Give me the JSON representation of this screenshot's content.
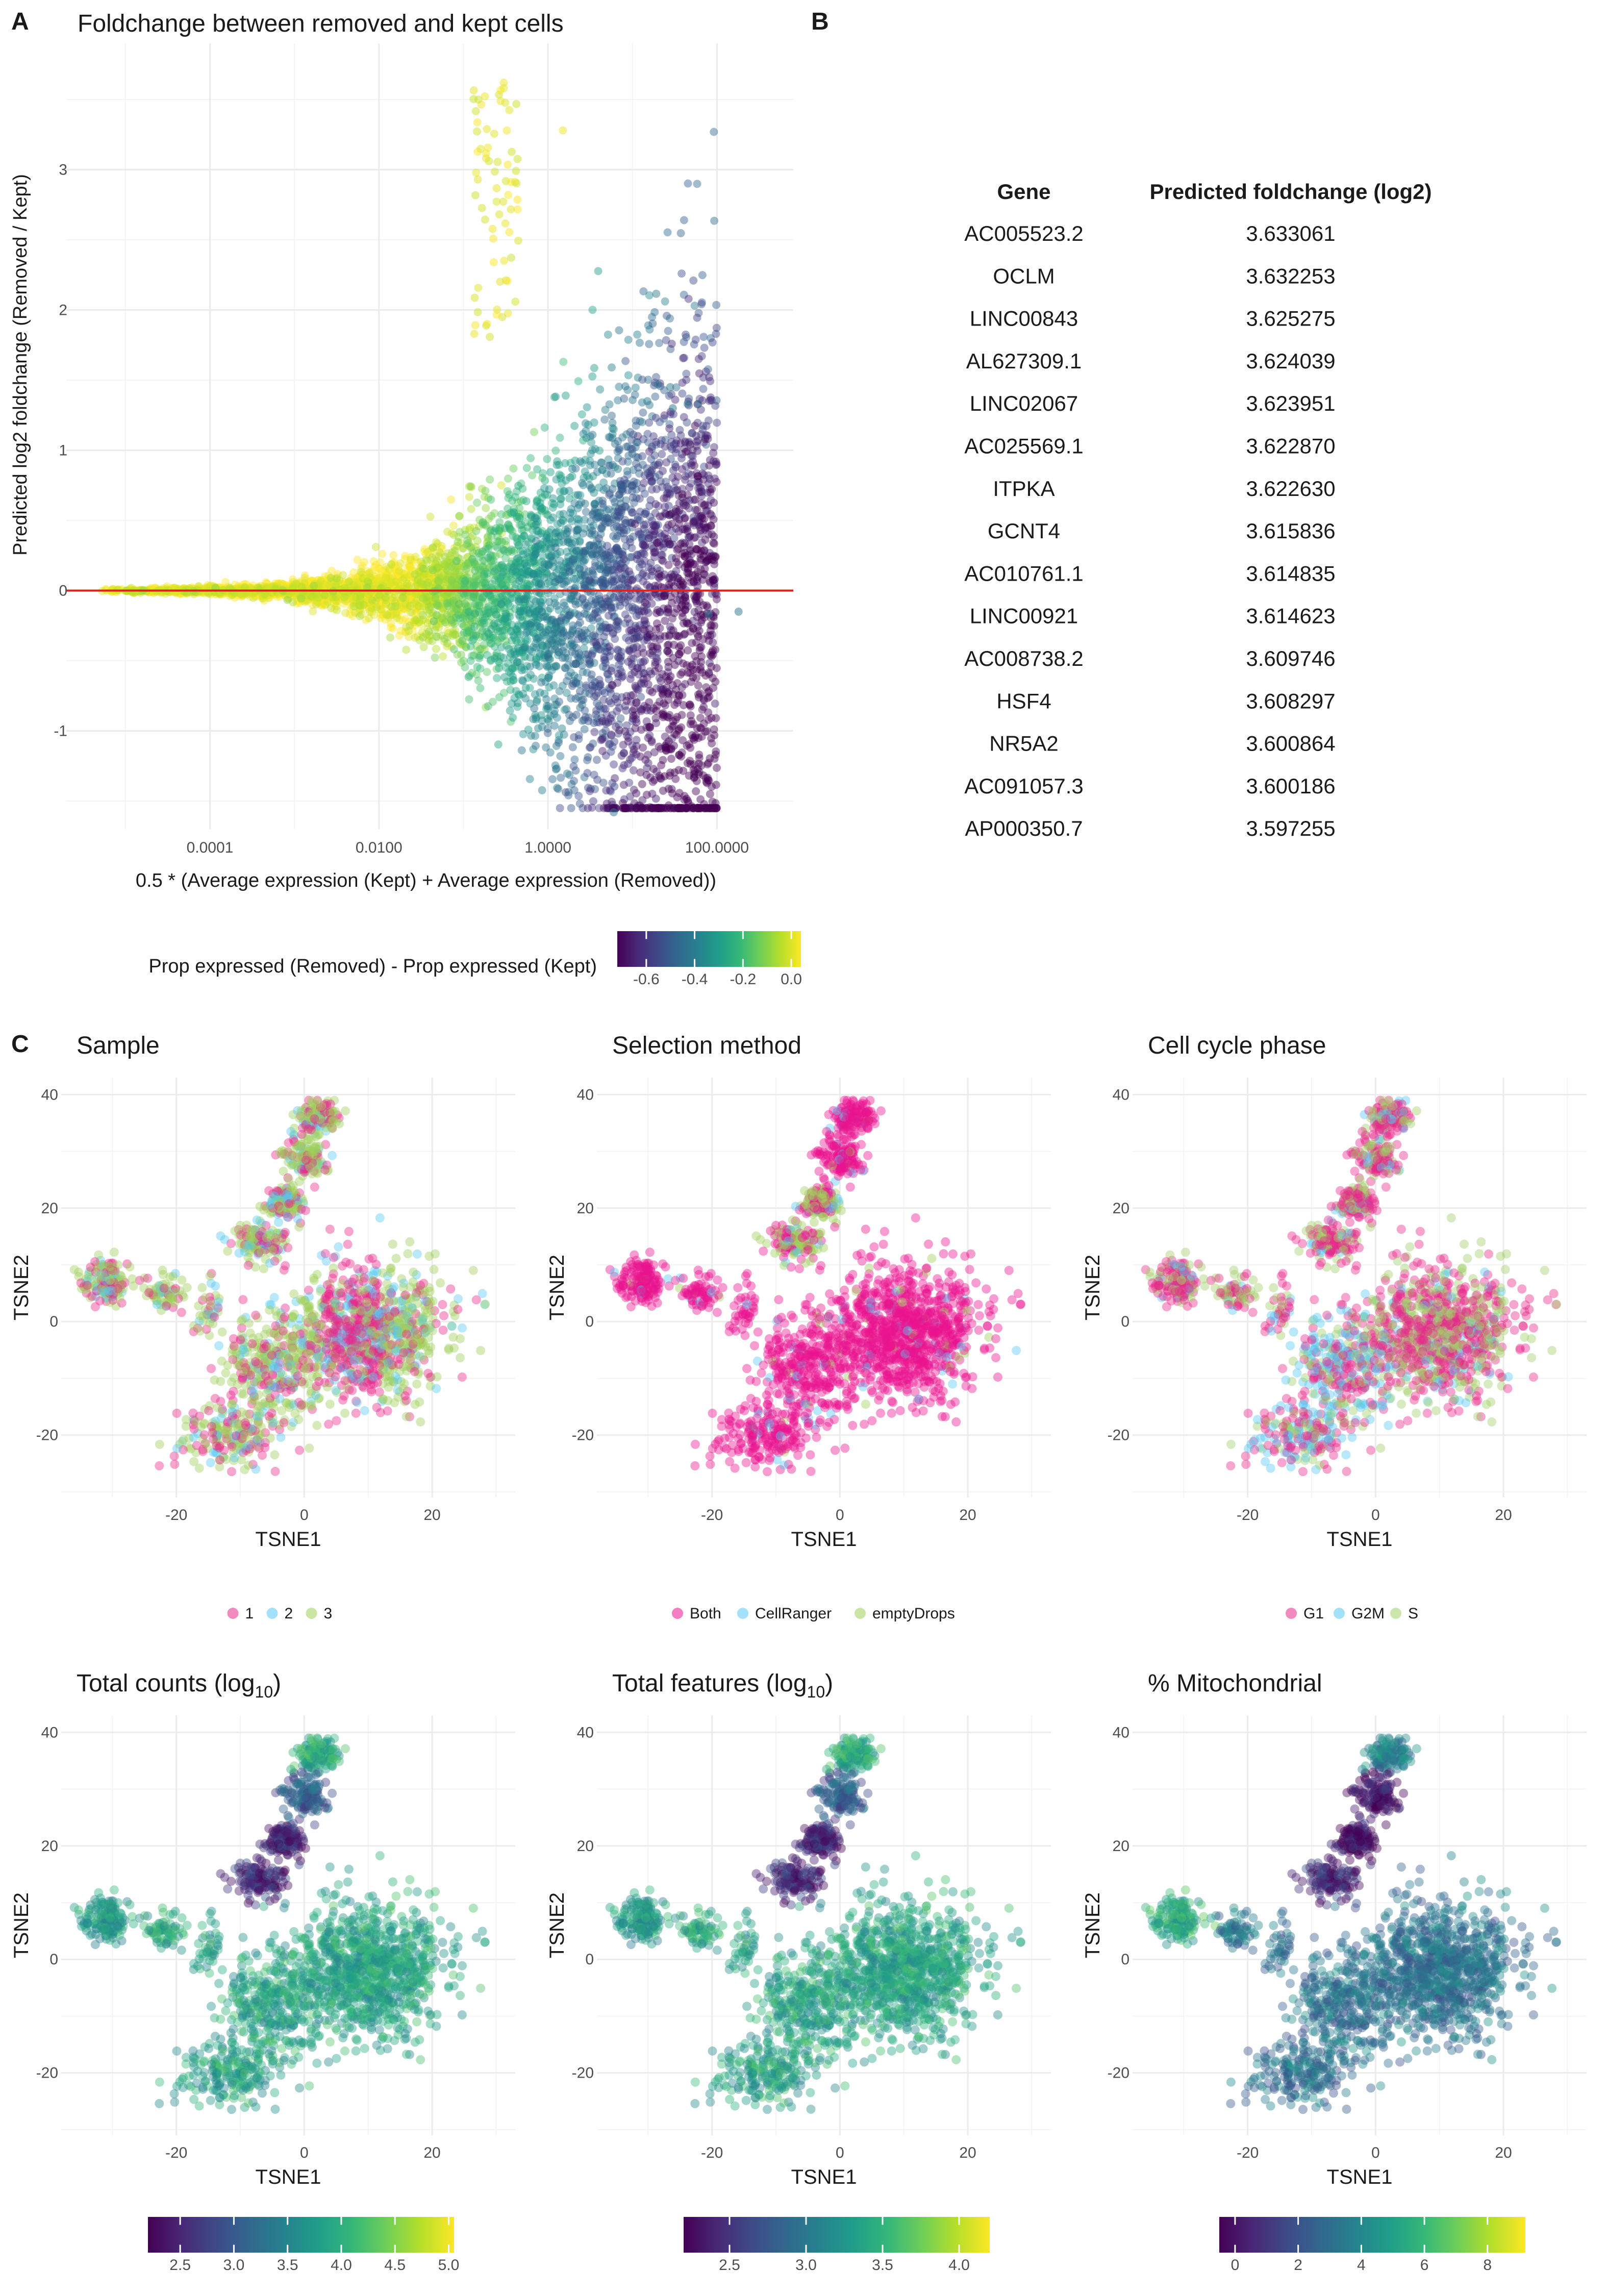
{
  "panels": {
    "A": "A",
    "B": "B",
    "C": "C"
  },
  "colors": {
    "viridis": [
      "#440154",
      "#482878",
      "#3e4a89",
      "#31688e",
      "#26828e",
      "#1f9e89",
      "#35b779",
      "#6ece58",
      "#b5de2b",
      "#fde725"
    ],
    "sample": {
      "1": "#e7298a",
      "2": "#56c8f0",
      "3": "#9fd05a"
    },
    "selection": {
      "Both": "#ea148e",
      "CellRanger": "#56c8f0",
      "emptyDrops": "#9fd05a"
    },
    "phase": {
      "G1": "#e7298a",
      "G2M": "#56c8f0",
      "S": "#a3cf6a"
    },
    "refline": "#e0201b"
  },
  "chart_data": [
    {
      "id": "A",
      "type": "scatter",
      "title": "Foldchange between removed and kept cells",
      "xlabel": "0.5 * (Average expression (Kept) + Average expression (Removed))",
      "ylabel": "Predicted log2 foldchange (Removed / Kept)",
      "x_scale": "log10",
      "xlim": [
        2e-06,
        800
      ],
      "ylim": [
        -1.7,
        3.9
      ],
      "xticks": [
        0.0001,
        0.01,
        1,
        100
      ],
      "xtick_labels": [
        "0.0001",
        "0.0100",
        "1.0000",
        "100.0000"
      ],
      "yticks": [
        -1,
        0,
        1,
        2,
        3
      ],
      "ytick_labels": [
        "-1",
        "0",
        "1",
        "2",
        "3"
      ],
      "hline": 0,
      "colorbar": {
        "label": "Prop expressed (Removed) - Prop expressed (Kept)",
        "range": [
          -0.72,
          0.04
        ],
        "ticks": [
          -0.6,
          -0.4,
          -0.2,
          0.0
        ],
        "tick_labels": [
          "-0.6",
          "-0.4",
          "-0.2",
          "0.0"
        ]
      },
      "outliers": [
        {
          "x": 20,
          "y": 1.47
        },
        {
          "x": 28,
          "y": 1.45
        },
        {
          "x": 15,
          "y": 1.35
        },
        {
          "x": 45,
          "y": 1.33
        },
        {
          "x": 30,
          "y": 1.3
        },
        {
          "x": 60,
          "y": 1.33
        },
        {
          "x": 80,
          "y": -0.17
        },
        {
          "x": 180,
          "y": -0.15
        },
        {
          "x": 1.5,
          "y": 3.28
        },
        {
          "x": 0.3,
          "y": 3.62
        },
        {
          "x": 0.3,
          "y": 3.58
        },
        {
          "x": 6,
          "y": -1.58
        }
      ]
    },
    {
      "id": "C1",
      "type": "scatter",
      "title": "Sample",
      "xlabel": "TSNE1",
      "ylabel": "TSNE2",
      "xlim": [
        -38,
        33
      ],
      "ylim": [
        -31,
        43
      ],
      "xticks": [
        -20,
        0,
        20
      ],
      "yticks": [
        -20,
        0,
        20,
        40
      ],
      "legend": [
        "1",
        "2",
        "3"
      ]
    },
    {
      "id": "C2",
      "type": "scatter",
      "title": "Selection method",
      "xlabel": "TSNE1",
      "ylabel": "TSNE2",
      "xlim": [
        -38,
        33
      ],
      "ylim": [
        -31,
        43
      ],
      "xticks": [
        -20,
        0,
        20
      ],
      "yticks": [
        -20,
        0,
        20,
        40
      ],
      "legend": [
        "Both",
        "CellRanger",
        "emptyDrops"
      ]
    },
    {
      "id": "C3",
      "type": "scatter",
      "title": "Cell cycle phase",
      "xlabel": "TSNE1",
      "ylabel": "TSNE2",
      "xlim": [
        -38,
        33
      ],
      "ylim": [
        -31,
        43
      ],
      "xticks": [
        -20,
        0,
        20
      ],
      "yticks": [
        -20,
        0,
        20,
        40
      ],
      "legend": [
        "G1",
        "G2M",
        "S"
      ]
    },
    {
      "id": "C4",
      "type": "scatter",
      "title": "Total counts (log",
      "title_sub": "10",
      "title_end": ")",
      "xlabel": "TSNE1",
      "ylabel": "TSNE2",
      "xlim": [
        -38,
        33
      ],
      "ylim": [
        -31,
        43
      ],
      "xticks": [
        -20,
        0,
        20
      ],
      "yticks": [
        -20,
        0,
        20,
        40
      ],
      "colorbar": {
        "range": [
          2.2,
          5.05
        ],
        "ticks": [
          2.5,
          3.0,
          3.5,
          4.0,
          4.5,
          5.0
        ],
        "tick_labels": [
          "2.5",
          "3.0",
          "3.5",
          "4.0",
          "4.5",
          "5.0"
        ]
      }
    },
    {
      "id": "C5",
      "type": "scatter",
      "title": "Total features (log",
      "title_sub": "10",
      "title_end": ")",
      "xlabel": "TSNE1",
      "ylabel": "TSNE2",
      "xlim": [
        -38,
        33
      ],
      "ylim": [
        -31,
        43
      ],
      "xticks": [
        -20,
        0,
        20
      ],
      "yticks": [
        -20,
        0,
        20,
        40
      ],
      "colorbar": {
        "range": [
          2.2,
          4.2
        ],
        "ticks": [
          2.5,
          3.0,
          3.5,
          4.0
        ],
        "tick_labels": [
          "2.5",
          "3.0",
          "3.5",
          "4.0"
        ]
      }
    },
    {
      "id": "C6",
      "type": "scatter",
      "title": "% Mitochondrial",
      "xlabel": "TSNE1",
      "ylabel": "TSNE2",
      "xlim": [
        -38,
        33
      ],
      "ylim": [
        -31,
        43
      ],
      "xticks": [
        -20,
        0,
        20
      ],
      "yticks": [
        -20,
        0,
        20,
        40
      ],
      "colorbar": {
        "range": [
          -0.5,
          9.2
        ],
        "ticks": [
          0,
          2,
          4,
          6,
          8
        ],
        "tick_labels": [
          "0",
          "2",
          "4",
          "6",
          "8"
        ]
      }
    }
  ],
  "table": {
    "columns": [
      "Gene",
      "Predicted foldchange (log2)"
    ],
    "rows": [
      [
        "AC005523.2",
        "3.633061"
      ],
      [
        "OCLM",
        "3.632253"
      ],
      [
        "LINC00843",
        "3.625275"
      ],
      [
        "AL627309.1",
        "3.624039"
      ],
      [
        "LINC02067",
        "3.623951"
      ],
      [
        "AC025569.1",
        "3.622870"
      ],
      [
        "ITPKA",
        "3.622630"
      ],
      [
        "GCNT4",
        "3.615836"
      ],
      [
        "AC010761.1",
        "3.614835"
      ],
      [
        "LINC00921",
        "3.614623"
      ],
      [
        "AC008738.2",
        "3.609746"
      ],
      [
        "HSF4",
        "3.608297"
      ],
      [
        "NR5A2",
        "3.600864"
      ],
      [
        "AC091057.3",
        "3.600186"
      ],
      [
        "AP000350.7",
        "3.597255"
      ]
    ]
  }
}
